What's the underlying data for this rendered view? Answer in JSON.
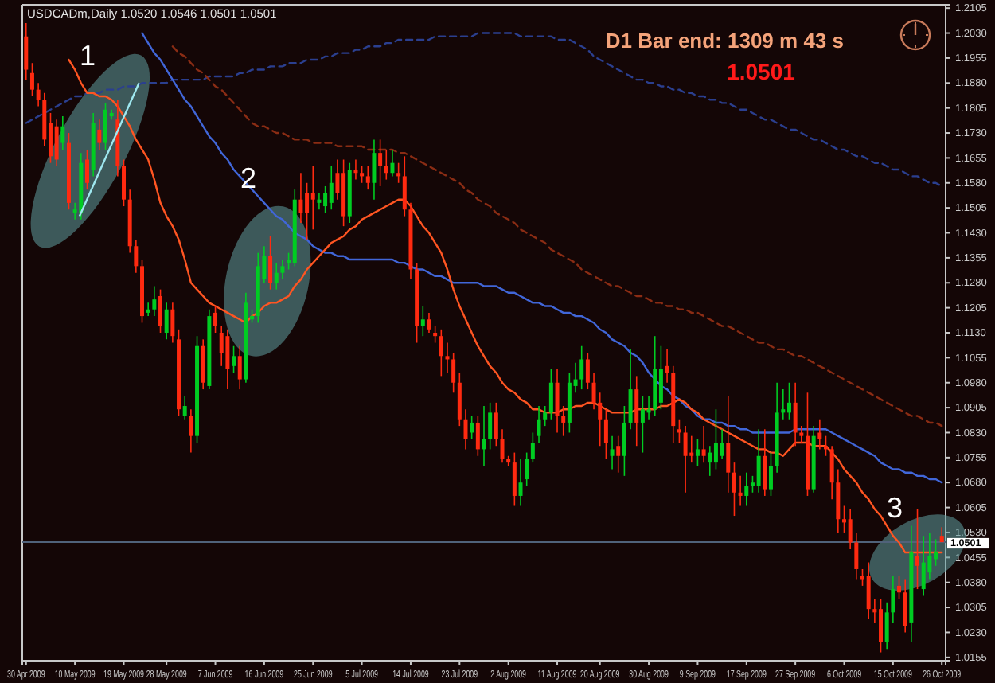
{
  "chart_data": {
    "type": "candlestick",
    "title": "USDCADm,Daily 1.0520 1.0546 1.0501 1.0501",
    "annotations": [
      "D1 Bar end: 1309 m 43 s",
      "1.0501",
      "1",
      "2",
      "3"
    ],
    "categories": [
      "30 Apr 2009",
      null,
      null,
      null,
      null,
      null,
      null,
      null,
      "10 May 2009",
      null,
      null,
      null,
      null,
      null,
      null,
      null,
      "19 May 2009",
      null,
      null,
      null,
      null,
      null,
      null,
      "28 May 2009",
      null,
      null,
      null,
      null,
      null,
      null,
      null,
      "7 Jun 2009",
      null,
      null,
      null,
      null,
      null,
      null,
      null,
      "16 Jun 2009",
      null,
      null,
      null,
      null,
      null,
      null,
      null,
      "25 Jun 2009",
      null,
      null,
      null,
      null,
      null,
      null,
      null,
      "5 Jul 2009",
      null,
      null,
      null,
      null,
      null,
      null,
      null,
      "14 Jul 2009",
      null,
      null,
      null,
      null,
      null,
      null,
      null,
      "23 Jul 2009",
      null,
      null,
      null,
      null,
      null,
      null,
      null,
      "2 Aug 2009",
      null,
      null,
      null,
      null,
      null,
      null,
      null,
      "11 Aug 2009",
      null,
      null,
      null,
      null,
      null,
      null,
      "20 Aug 2009",
      null,
      null,
      null,
      null,
      null,
      null,
      null,
      "30 Aug 2009",
      null,
      null,
      null,
      null,
      null,
      null,
      null,
      "9 Sep 2009",
      null,
      null,
      null,
      null,
      null,
      null,
      null,
      "17 Sep 2009",
      null,
      null,
      null,
      null,
      null,
      null,
      null,
      "27 Sep 2009",
      null,
      null,
      null,
      null,
      null,
      null,
      null,
      "6 Oct 2009",
      null,
      null,
      null,
      null,
      null,
      null,
      null,
      "15 Oct 2009",
      null,
      null,
      null,
      null,
      null,
      null,
      null,
      "26 Oct 2009"
    ],
    "ylim": [
      1.0145,
      1.2115
    ],
    "yticks": [
      1.2105,
      {
        "value": 1.203,
        "label": "1.2030"
      },
      1.1955,
      {
        "value": 1.188,
        "label": "1.1880"
      },
      1.1805,
      {
        "value": 1.173,
        "label": "1.1730"
      },
      1.1655,
      {
        "value": 1.158,
        "label": "1.1580"
      },
      1.1505,
      {
        "value": 1.143,
        "label": "1.1430"
      },
      1.1355,
      {
        "value": 1.128,
        "label": "1.1280"
      },
      1.1205,
      {
        "value": 1.113,
        "label": "1.1130"
      },
      1.1055,
      {
        "value": 1.098,
        "label": "1.0980"
      },
      1.0905,
      {
        "value": 1.083,
        "label": "1.0830"
      },
      1.0755,
      {
        "value": 1.068,
        "label": "1.0680"
      },
      1.0605,
      {
        "value": 1.053,
        "label": "1.0530"
      },
      1.0455,
      {
        "value": 1.038,
        "label": "1.0380"
      },
      1.0305,
      {
        "value": 1.023,
        "label": "1.0230"
      },
      1.0155
    ],
    "ref_lines": [
      {
        "axis": "y",
        "value": 1.0501,
        "label": "1.0501",
        "color": "#50627a"
      }
    ],
    "ohlc": [
      [
        1.202,
        1.206,
        1.189,
        1.192
      ],
      [
        1.191,
        1.194,
        1.184,
        1.186
      ],
      [
        1.186,
        1.188,
        1.181,
        1.183
      ],
      [
        1.183,
        1.185,
        1.169,
        1.171
      ],
      [
        1.176,
        1.179,
        1.164,
        1.166
      ],
      [
        1.175,
        1.177,
        1.163,
        1.165
      ],
      [
        1.17,
        1.178,
        1.168,
        1.175
      ],
      [
        1.17,
        1.173,
        1.15,
        1.152
      ],
      [
        1.149,
        1.152,
        1.147,
        1.15
      ],
      [
        1.149,
        1.167,
        1.147,
        1.164
      ],
      [
        1.165,
        1.168,
        1.156,
        1.158
      ],
      [
        1.162,
        1.179,
        1.16,
        1.176
      ],
      [
        1.174,
        1.177,
        1.168,
        1.17
      ],
      [
        1.17,
        1.182,
        1.168,
        1.18
      ],
      [
        1.178,
        1.18,
        1.177,
        1.179
      ],
      [
        1.177,
        1.183,
        1.16,
        1.163
      ],
      [
        1.163,
        1.165,
        1.151,
        1.153
      ],
      [
        1.153,
        1.156,
        1.137,
        1.139
      ],
      [
        1.139,
        1.141,
        1.131,
        1.133
      ],
      [
        1.133,
        1.135,
        1.116,
        1.118
      ],
      [
        1.119,
        1.122,
        1.118,
        1.12
      ],
      [
        1.12,
        1.127,
        1.118,
        1.123
      ],
      [
        1.124,
        1.126,
        1.113,
        1.115
      ],
      [
        1.113,
        1.122,
        1.111,
        1.12
      ],
      [
        1.12,
        1.122,
        1.11,
        1.112
      ],
      [
        1.111,
        1.114,
        1.088,
        1.09
      ],
      [
        1.088,
        1.094,
        1.087,
        1.091
      ],
      [
        1.088,
        1.09,
        1.077,
        1.082
      ],
      [
        1.082,
        1.112,
        1.08,
        1.109
      ],
      [
        1.109,
        1.111,
        1.096,
        1.098
      ],
      [
        1.097,
        1.12,
        1.096,
        1.118
      ],
      [
        1.119,
        1.121,
        1.113,
        1.115
      ],
      [
        1.113,
        1.115,
        1.103,
        1.107
      ],
      [
        1.112,
        1.114,
        1.096,
        1.102
      ],
      [
        1.103,
        1.109,
        1.101,
        1.106
      ],
      [
        1.106,
        1.109,
        1.096,
        1.099
      ],
      [
        1.099,
        1.125,
        1.098,
        1.122
      ],
      [
        1.117,
        1.12,
        1.116,
        1.118
      ],
      [
        1.118,
        1.137,
        1.116,
        1.133
      ],
      [
        1.129,
        1.139,
        1.128,
        1.136
      ],
      [
        1.136,
        1.142,
        1.126,
        1.128
      ],
      [
        1.128,
        1.134,
        1.126,
        1.131
      ],
      [
        1.131,
        1.135,
        1.129,
        1.133
      ],
      [
        1.134,
        1.137,
        1.132,
        1.135
      ],
      [
        1.134,
        1.156,
        1.133,
        1.153
      ],
      [
        1.153,
        1.161,
        1.146,
        1.149
      ],
      [
        1.155,
        1.158,
        1.141,
        1.149
      ],
      [
        1.155,
        1.163,
        1.144,
        1.153
      ],
      [
        1.152,
        1.155,
        1.15,
        1.153
      ],
      [
        1.151,
        1.157,
        1.149,
        1.155
      ],
      [
        1.152,
        1.163,
        1.15,
        1.158
      ],
      [
        1.161,
        1.165,
        1.153,
        1.155
      ],
      [
        1.161,
        1.165,
        1.145,
        1.148
      ],
      [
        1.148,
        1.164,
        1.146,
        1.162
      ],
      [
        1.162,
        1.165,
        1.159,
        1.161
      ],
      [
        1.161,
        1.163,
        1.158,
        1.16
      ],
      [
        1.16,
        1.163,
        1.156,
        1.158
      ],
      [
        1.158,
        1.171,
        1.153,
        1.167
      ],
      [
        1.167,
        1.171,
        1.157,
        1.163
      ],
      [
        1.163,
        1.168,
        1.159,
        1.161
      ],
      [
        1.161,
        1.168,
        1.16,
        1.164
      ],
      [
        1.161,
        1.164,
        1.158,
        1.16
      ],
      [
        1.16,
        1.166,
        1.148,
        1.15
      ],
      [
        1.15,
        1.152,
        1.129,
        1.132
      ],
      [
        1.132,
        1.134,
        1.11,
        1.115
      ],
      [
        1.115,
        1.121,
        1.112,
        1.117
      ],
      [
        1.117,
        1.119,
        1.113,
        1.114
      ],
      [
        1.113,
        1.115,
        1.11,
        1.112
      ],
      [
        1.112,
        1.114,
        1.1,
        1.106
      ],
      [
        1.106,
        1.11,
        1.101,
        1.105
      ],
      [
        1.105,
        1.107,
        1.095,
        1.098
      ],
      [
        1.098,
        1.101,
        1.085,
        1.087
      ],
      [
        1.087,
        1.09,
        1.078,
        1.081
      ],
      [
        1.083,
        1.088,
        1.081,
        1.086
      ],
      [
        1.086,
        1.088,
        1.076,
        1.078
      ],
      [
        1.078,
        1.091,
        1.073,
        1.081
      ],
      [
        1.081,
        1.092,
        1.078,
        1.089
      ],
      [
        1.089,
        1.092,
        1.079,
        1.081
      ],
      [
        1.081,
        1.084,
        1.074,
        1.075
      ],
      [
        1.075,
        1.076,
        1.073,
        1.074
      ],
      [
        1.074,
        1.077,
        1.061,
        1.064
      ],
      [
        1.064,
        1.075,
        1.061,
        1.068
      ],
      [
        1.069,
        1.077,
        1.067,
        1.075
      ],
      [
        1.075,
        1.083,
        1.074,
        1.08
      ],
      [
        1.082,
        1.091,
        1.08,
        1.087
      ],
      [
        1.087,
        1.091,
        1.085,
        1.089
      ],
      [
        1.089,
        1.102,
        1.087,
        1.098
      ],
      [
        1.098,
        1.102,
        1.083,
        1.088
      ],
      [
        1.088,
        1.091,
        1.082,
        1.086
      ],
      [
        1.086,
        1.101,
        1.083,
        1.098
      ],
      [
        1.097,
        1.104,
        1.095,
        1.099
      ],
      [
        1.099,
        1.109,
        1.096,
        1.105
      ],
      [
        1.105,
        1.107,
        1.096,
        1.098
      ],
      [
        1.098,
        1.101,
        1.09,
        1.092
      ],
      [
        1.092,
        1.095,
        1.079,
        1.087
      ],
      [
        1.087,
        1.09,
        1.075,
        1.08
      ],
      [
        1.076,
        1.082,
        1.072,
        1.078
      ],
      [
        1.079,
        1.082,
        1.071,
        1.076
      ],
      [
        1.076,
        1.091,
        1.07,
        1.086
      ],
      [
        1.086,
        1.108,
        1.084,
        1.096
      ],
      [
        1.096,
        1.1,
        1.079,
        1.086
      ],
      [
        1.086,
        1.094,
        1.077,
        1.09
      ],
      [
        1.089,
        1.094,
        1.087,
        1.09
      ],
      [
        1.09,
        1.112,
        1.088,
        1.102
      ],
      [
        1.092,
        1.109,
        1.09,
        1.102
      ],
      [
        1.103,
        1.108,
        1.098,
        1.101
      ],
      [
        1.101,
        1.103,
        1.08,
        1.085
      ],
      [
        1.084,
        1.087,
        1.08,
        1.083
      ],
      [
        1.083,
        1.085,
        1.065,
        1.076
      ],
      [
        1.077,
        1.082,
        1.074,
        1.076
      ],
      [
        1.076,
        1.081,
        1.073,
        1.078
      ],
      [
        1.078,
        1.085,
        1.074,
        1.076
      ],
      [
        1.074,
        1.079,
        1.07,
        1.077
      ],
      [
        1.074,
        1.09,
        1.072,
        1.08
      ],
      [
        1.076,
        1.084,
        1.075,
        1.08
      ],
      [
        1.08,
        1.094,
        1.065,
        1.071
      ],
      [
        1.071,
        1.074,
        1.058,
        1.065
      ],
      [
        1.065,
        1.07,
        1.061,
        1.064
      ],
      [
        1.064,
        1.071,
        1.061,
        1.067
      ],
      [
        1.067,
        1.07,
        1.065,
        1.068
      ],
      [
        1.067,
        1.084,
        1.065,
        1.076
      ],
      [
        1.076,
        1.084,
        1.064,
        1.066
      ],
      [
        1.066,
        1.077,
        1.064,
        1.073
      ],
      [
        1.073,
        1.098,
        1.071,
        1.089
      ],
      [
        1.089,
        1.096,
        1.087,
        1.09
      ],
      [
        1.089,
        1.098,
        1.087,
        1.092
      ],
      [
        1.092,
        1.098,
        1.079,
        1.083
      ],
      [
        1.083,
        1.085,
        1.08,
        1.082
      ],
      [
        1.082,
        1.095,
        1.064,
        1.066
      ],
      [
        1.066,
        1.085,
        1.065,
        1.082
      ],
      [
        1.083,
        1.087,
        1.078,
        1.081
      ],
      [
        1.079,
        1.082,
        1.076,
        1.078
      ],
      [
        1.078,
        1.079,
        1.063,
        1.068
      ],
      [
        1.068,
        1.072,
        1.053,
        1.057
      ],
      [
        1.057,
        1.061,
        1.053,
        1.056
      ],
      [
        1.057,
        1.06,
        1.048,
        1.05
      ],
      [
        1.05,
        1.053,
        1.039,
        1.042
      ],
      [
        1.04,
        1.042,
        1.037,
        1.039
      ],
      [
        1.04,
        1.044,
        1.027,
        1.03
      ],
      [
        1.03,
        1.033,
        1.026,
        1.029
      ],
      [
        1.03,
        1.033,
        1.017,
        1.02
      ],
      [
        1.02,
        1.032,
        1.018,
        1.029
      ],
      [
        1.029,
        1.04,
        1.026,
        1.036
      ],
      [
        1.037,
        1.04,
        1.033,
        1.035
      ],
      [
        1.035,
        1.039,
        1.023,
        1.025
      ],
      [
        1.026,
        1.055,
        1.02,
        1.047
      ],
      [
        1.046,
        1.06,
        1.036,
        1.043
      ],
      [
        1.036,
        1.052,
        1.034,
        1.044
      ],
      [
        1.041,
        1.053,
        1.039,
        1.046
      ],
      [
        1.045,
        1.051,
        1.043,
        1.047
      ],
      [
        1.052,
        1.0546,
        1.0501,
        1.0501
      ]
    ],
    "series": [
      {
        "type": "line",
        "color": "#2b3f8f",
        "line_style": "dashed",
        "values": [
          1.176,
          1.177,
          1.178,
          1.179,
          1.18,
          1.181,
          1.182,
          1.183,
          1.184,
          1.184,
          1.185,
          1.185,
          1.185,
          1.186,
          1.186,
          1.186,
          1.187,
          1.187,
          1.187,
          1.188,
          1.188,
          1.188,
          1.188,
          1.188,
          1.189,
          1.189,
          1.189,
          1.189,
          1.189,
          1.189,
          1.19,
          1.19,
          1.19,
          1.19,
          1.19,
          1.191,
          1.191,
          1.192,
          1.192,
          1.192,
          1.193,
          1.193,
          1.193,
          1.194,
          1.194,
          1.194,
          1.195,
          1.195,
          1.195,
          1.196,
          1.196,
          1.197,
          1.197,
          1.197,
          1.198,
          1.198,
          1.199,
          1.199,
          1.199,
          1.2,
          1.2,
          1.201,
          1.201,
          1.201,
          1.201,
          1.201,
          1.201,
          1.202,
          1.202,
          1.202,
          1.202,
          1.202,
          1.202,
          1.202,
          1.203,
          1.203,
          1.203,
          1.203,
          1.203,
          1.203,
          1.203,
          1.202,
          1.202,
          1.202,
          1.202,
          1.202,
          1.202,
          1.201,
          1.201,
          1.201,
          1.2,
          1.199,
          1.198,
          1.196,
          1.195,
          1.194,
          1.193,
          1.192,
          1.191,
          1.19,
          1.189,
          1.189,
          1.188,
          1.188,
          1.187,
          1.187,
          1.186,
          1.186,
          1.185,
          1.185,
          1.184,
          1.184,
          1.183,
          1.183,
          1.182,
          1.182,
          1.181,
          1.18,
          1.18,
          1.179,
          1.178,
          1.177,
          1.177,
          1.176,
          1.175,
          1.174,
          1.174,
          1.173,
          1.172,
          1.171,
          1.171,
          1.17,
          1.169,
          1.168,
          1.168,
          1.167,
          1.166,
          1.166,
          1.165,
          1.164,
          1.164,
          1.163,
          1.162,
          1.162,
          1.161,
          1.16,
          1.16,
          1.159,
          1.158,
          1.158,
          1.157
        ]
      },
      {
        "type": "line",
        "color": "#8a2c14",
        "line_style": "dashed",
        "values": [
          null,
          null,
          null,
          null,
          null,
          null,
          null,
          null,
          null,
          null,
          null,
          null,
          null,
          null,
          null,
          null,
          null,
          null,
          null,
          null,
          null,
          null,
          null,
          null,
          1.199,
          1.197,
          1.196,
          1.194,
          1.192,
          1.191,
          1.189,
          1.187,
          1.186,
          1.184,
          1.182,
          1.18,
          1.178,
          1.176,
          1.175,
          1.175,
          1.174,
          1.173,
          1.173,
          1.172,
          1.171,
          1.171,
          1.171,
          1.17,
          1.17,
          1.17,
          1.17,
          1.169,
          1.169,
          1.169,
          1.169,
          1.169,
          1.168,
          1.168,
          1.168,
          1.168,
          1.168,
          1.167,
          1.167,
          1.166,
          1.165,
          1.164,
          1.163,
          1.162,
          1.161,
          1.16,
          1.159,
          1.158,
          1.156,
          1.155,
          1.153,
          1.152,
          1.151,
          1.149,
          1.148,
          1.147,
          1.146,
          1.144,
          1.143,
          1.142,
          1.141,
          1.14,
          1.138,
          1.137,
          1.136,
          1.135,
          1.134,
          1.132,
          1.131,
          1.13,
          1.129,
          1.128,
          1.127,
          1.127,
          1.126,
          1.125,
          1.124,
          1.124,
          1.123,
          1.122,
          1.122,
          1.121,
          1.121,
          1.12,
          1.12,
          1.119,
          1.119,
          1.118,
          1.117,
          1.116,
          1.115,
          1.115,
          1.114,
          1.113,
          1.112,
          1.111,
          1.11,
          1.11,
          1.109,
          1.108,
          1.108,
          1.107,
          1.106,
          1.106,
          1.105,
          1.104,
          1.103,
          1.102,
          1.101,
          1.1,
          1.099,
          1.098,
          1.097,
          1.096,
          1.095,
          1.094,
          1.093,
          1.092,
          1.091,
          1.09,
          1.089,
          1.088,
          1.088,
          1.087,
          1.086,
          1.086,
          1.085
        ]
      },
      {
        "type": "line",
        "color": "#4166d8",
        "line_style": "solid",
        "values": [
          null,
          null,
          null,
          null,
          null,
          null,
          null,
          null,
          null,
          null,
          null,
          null,
          null,
          null,
          null,
          null,
          null,
          null,
          null,
          1.203,
          1.2,
          1.197,
          1.195,
          1.192,
          1.189,
          1.186,
          1.183,
          1.181,
          1.178,
          1.175,
          1.172,
          1.17,
          1.167,
          1.165,
          1.162,
          1.16,
          1.158,
          1.156,
          1.154,
          1.152,
          1.15,
          1.148,
          1.147,
          1.145,
          1.143,
          1.142,
          1.141,
          1.139,
          1.138,
          1.137,
          1.137,
          1.136,
          1.136,
          1.135,
          1.135,
          1.135,
          1.135,
          1.135,
          1.135,
          1.135,
          1.135,
          1.134,
          1.134,
          1.133,
          1.132,
          1.132,
          1.131,
          1.13,
          1.13,
          1.129,
          1.128,
          1.128,
          1.128,
          1.128,
          1.128,
          1.127,
          1.127,
          1.127,
          1.126,
          1.125,
          1.125,
          1.124,
          1.123,
          1.122,
          1.122,
          1.121,
          1.121,
          1.12,
          1.119,
          1.119,
          1.118,
          1.118,
          1.117,
          1.116,
          1.114,
          1.113,
          1.111,
          1.11,
          1.109,
          1.107,
          1.106,
          1.104,
          1.101,
          1.099,
          1.097,
          1.096,
          1.094,
          1.093,
          1.091,
          1.09,
          1.088,
          1.087,
          1.087,
          1.086,
          1.086,
          1.085,
          1.085,
          1.084,
          1.084,
          1.083,
          1.083,
          1.083,
          1.083,
          1.083,
          1.083,
          1.083,
          1.084,
          1.084,
          1.084,
          1.084,
          1.084,
          1.084,
          1.083,
          1.082,
          1.081,
          1.08,
          1.079,
          1.078,
          1.077,
          1.076,
          1.074,
          1.073,
          1.072,
          1.072,
          1.071,
          1.071,
          1.07,
          1.07,
          1.069,
          1.069,
          1.068
        ]
      },
      {
        "type": "line",
        "color": "#ff5522",
        "line_style": "solid",
        "values": [
          null,
          null,
          null,
          null,
          null,
          null,
          null,
          1.195,
          1.192,
          1.188,
          1.185,
          1.185,
          1.184,
          1.184,
          1.183,
          1.181,
          1.178,
          1.175,
          1.171,
          1.168,
          1.165,
          1.159,
          1.152,
          1.148,
          1.145,
          1.141,
          1.135,
          1.128,
          1.126,
          1.124,
          1.122,
          1.121,
          1.12,
          1.119,
          1.118,
          1.117,
          1.116,
          1.118,
          1.119,
          1.121,
          1.122,
          1.122,
          1.123,
          1.124,
          1.127,
          1.129,
          1.132,
          1.134,
          1.136,
          1.138,
          1.14,
          1.141,
          1.142,
          1.144,
          1.145,
          1.147,
          1.148,
          1.149,
          1.15,
          1.151,
          1.152,
          1.153,
          1.153,
          1.151,
          1.148,
          1.145,
          1.143,
          1.14,
          1.137,
          1.132,
          1.126,
          1.121,
          1.117,
          1.113,
          1.109,
          1.106,
          1.103,
          1.101,
          1.098,
          1.096,
          1.095,
          1.093,
          1.092,
          1.09,
          1.09,
          1.089,
          1.089,
          1.089,
          1.09,
          1.09,
          1.091,
          1.091,
          1.092,
          1.092,
          1.091,
          1.09,
          1.089,
          1.089,
          1.089,
          1.089,
          1.09,
          1.09,
          1.09,
          1.09,
          1.091,
          1.091,
          1.092,
          1.093,
          1.092,
          1.09,
          1.089,
          1.087,
          1.086,
          1.085,
          1.084,
          1.083,
          1.082,
          1.081,
          1.08,
          1.079,
          1.078,
          1.078,
          1.077,
          1.077,
          1.076,
          1.078,
          1.08,
          1.08,
          1.08,
          1.079,
          1.079,
          1.079,
          1.077,
          1.075,
          1.072,
          1.07,
          1.068,
          1.065,
          1.063,
          1.06,
          1.058,
          1.055,
          1.052,
          1.05,
          1.047,
          1.047,
          1.047,
          1.047,
          1.047,
          1.047,
          1.047
        ]
      }
    ]
  }
}
